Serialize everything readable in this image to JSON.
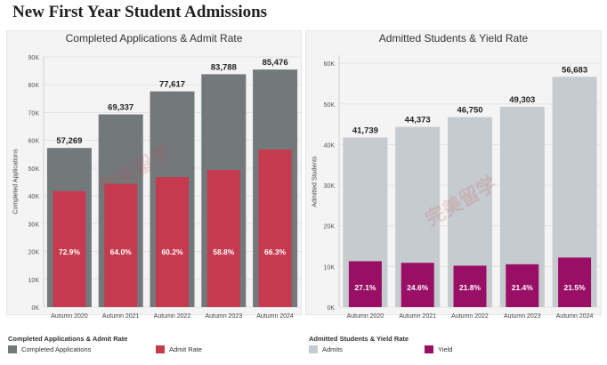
{
  "page_title": "New First Year Student Admissions",
  "watermark": "完美留学",
  "colors": {
    "applications": "#73787b",
    "admit_rate": "#c53a4e",
    "admits": "#c5cbcf",
    "yield": "#9a0f66"
  },
  "chart_data": [
    {
      "type": "bar",
      "title": "Completed Applications & Admit Rate",
      "ylabel": "Completed Applications",
      "categories": [
        "Autumn 2020",
        "Autumn 2021",
        "Autumn 2022",
        "Autumn 2023",
        "Autumn 2024"
      ],
      "ylim": [
        0,
        90000
      ],
      "yticks": [
        0,
        10000,
        20000,
        30000,
        40000,
        50000,
        60000,
        70000,
        80000,
        90000
      ],
      "ytick_labels": [
        "0K",
        "10K",
        "20K",
        "30K",
        "40K",
        "50K",
        "60K",
        "70K",
        "80K",
        "90K"
      ],
      "series": [
        {
          "name": "Completed Applications",
          "values": [
            57269,
            69337,
            77617,
            83788,
            85476
          ],
          "labels": [
            "57,269",
            "69,337",
            "77,617",
            "83,788",
            "85,476"
          ]
        },
        {
          "name": "Admit Rate",
          "values": [
            41739,
            44373,
            46750,
            49303,
            56683
          ],
          "labels": [
            "72.9%",
            "64.0%",
            "60.2%",
            "58.8%",
            "66.3%"
          ]
        }
      ],
      "legend_title": "Completed Applications & Admit Rate",
      "legend": [
        "Completed Applications",
        "Admit Rate"
      ]
    },
    {
      "type": "bar",
      "title": "Admitted Students & Yield Rate",
      "ylabel": "Admitted Students",
      "categories": [
        "Autumn 2020",
        "Autumn 2021",
        "Autumn 2022",
        "Autumn 2023",
        "Autumn 2024"
      ],
      "ylim": [
        0,
        62000
      ],
      "yticks": [
        0,
        10000,
        20000,
        30000,
        40000,
        50000,
        60000
      ],
      "ytick_labels": [
        "0K",
        "10K",
        "20K",
        "30K",
        "40K",
        "50K",
        "60K"
      ],
      "series": [
        {
          "name": "Admits",
          "values": [
            41739,
            44373,
            46750,
            49303,
            56683
          ],
          "labels": [
            "41,739",
            "44,373",
            "46,750",
            "49,303",
            "56,683"
          ]
        },
        {
          "name": "Yield",
          "values": [
            11300,
            10900,
            10200,
            10550,
            12200
          ],
          "labels": [
            "27.1%",
            "24.6%",
            "21.8%",
            "21.4%",
            "21.5%"
          ]
        }
      ],
      "legend_title": "Admitted Students & Yield Rate",
      "legend": [
        "Admits",
        "Yield"
      ]
    }
  ]
}
